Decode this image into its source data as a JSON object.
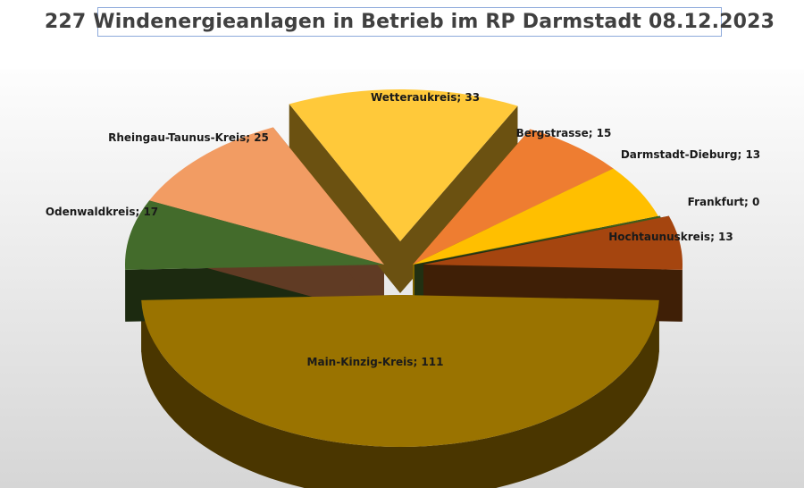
{
  "title": "227 Windenergieanlagen in Betrieb im RP Darmstadt 08.12.2023",
  "chart_data": {
    "type": "pie",
    "style": "3D exploded pie",
    "title": "227 Windenergieanlagen in Betrieb im RP Darmstadt 08.12.2023",
    "categories": [
      "Main-Kinzig-Kreis",
      "Odenwaldkreis",
      "Rheingau-Taunus-Kreis",
      "Wetteraukreis",
      "Bergstrasse",
      "Darmstadt-Dieburg",
      "Frankfurt",
      "Hochtaunuskreis"
    ],
    "values": [
      111,
      17,
      25,
      33,
      15,
      13,
      0,
      13
    ],
    "labels": [
      "Main-Kinzig-Kreis; 111",
      "Odenwaldkreis; 17",
      "Rheingau-Taunus-Kreis; 25",
      "Wetteraukreis; 33",
      "Bergstrasse; 15",
      "Darmstadt-Dieburg; 13",
      "Frankfurt; 0",
      "Hochtaunuskreis; 13"
    ],
    "colors": [
      "#9a7300",
      "#436b2b",
      "#f29c63",
      "#ffc93a",
      "#ee7d31",
      "#ffbf00",
      "#3e5f1c",
      "#a5450f"
    ],
    "side_colors": [
      "#4a3600",
      "#1c2a10",
      "#603b24",
      "#6b5111",
      "#7f4115",
      "#7e6400",
      "#213012",
      "#3f1f06"
    ]
  }
}
